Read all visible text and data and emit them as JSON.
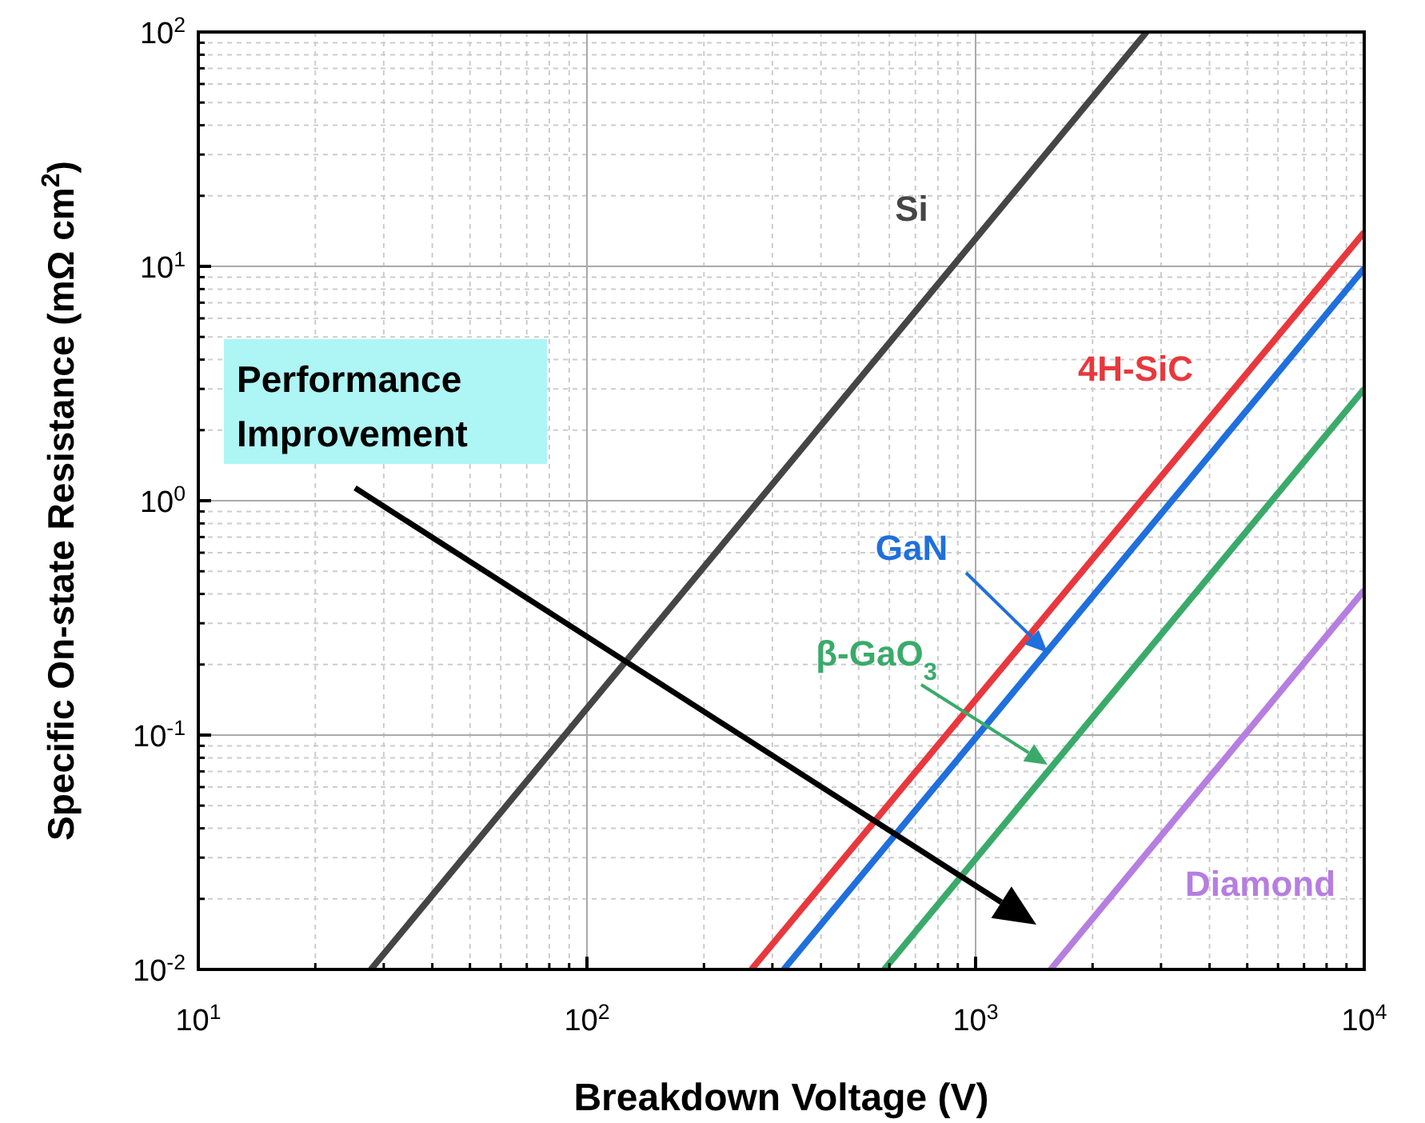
{
  "chart_data": {
    "type": "line",
    "xlabel": "Breakdown Voltage (V)",
    "ylabel": "Specific On-state Resistance (mΩ cm$^{2}$)",
    "log": "xy",
    "grid": true,
    "legend": false,
    "marker": "none",
    "line_style": "solid",
    "xlim": [
      10,
      10000
    ],
    "ylim": [
      0.01,
      100
    ],
    "xticks": [
      {
        "value": 10,
        "label": "10$^{1}$"
      },
      {
        "value": 100,
        "label": "10$^{2}$"
      },
      {
        "value": 1000,
        "label": "10$^{3}$"
      },
      {
        "value": 10000,
        "label": "10$^{4}$"
      }
    ],
    "yticks": [
      {
        "value": 0.01,
        "label": "10$^{-2}$"
      },
      {
        "value": 0.1,
        "label": "10$^{-1}$"
      },
      {
        "value": 1,
        "label": "10$^{0}$"
      },
      {
        "value": 10,
        "label": "10$^{1}$"
      },
      {
        "value": 100,
        "label": "10$^{2}$"
      }
    ],
    "series": [
      {
        "name": "Si",
        "color": "#454545",
        "x": [
          27.8,
          2754
        ],
        "values": [
          0.01,
          100
        ]
      },
      {
        "name": "4H-SiC",
        "color": "#e8383d",
        "x": [
          265,
          10000
        ],
        "values": [
          0.01,
          14
        ]
      },
      {
        "name": "GaN",
        "color": "#1f6fdc",
        "x": [
          321,
          10000
        ],
        "values": [
          0.01,
          9.8
        ]
      },
      {
        "name": "β-GaO$_{3}$",
        "color": "#3aaa6a",
        "x": [
          582,
          10000
        ],
        "values": [
          0.01,
          3.0
        ]
      },
      {
        "name": "Diamond",
        "color": "#b57ee0",
        "x": [
          1560,
          10000
        ],
        "values": [
          0.01,
          0.415
        ]
      }
    ],
    "annotations": [
      "Performance Improvement"
    ]
  }
}
